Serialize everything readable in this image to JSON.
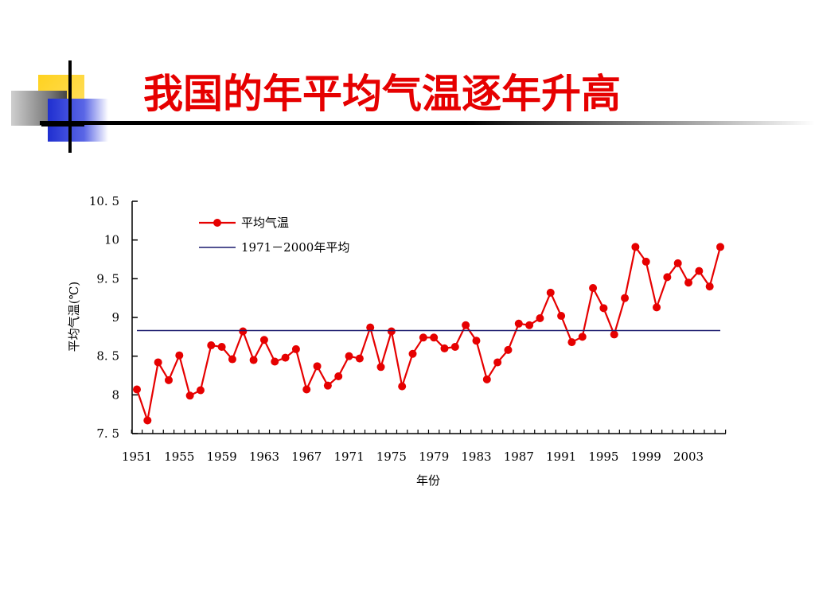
{
  "slide": {
    "title": "我国的年平均气温逐年升高",
    "title_color": "#e60000"
  },
  "chart_data": {
    "type": "line",
    "xlabel": "年份",
    "ylabel": "平均气温(℃)",
    "ylim": [
      7.5,
      10.5
    ],
    "yticks": [
      7.5,
      8,
      8.5,
      9,
      9.5,
      10,
      10.5
    ],
    "ytick_labels": [
      "7. 5",
      "8",
      "8. 5",
      "9",
      "9. 5",
      "10",
      "10. 5"
    ],
    "xlim": [
      1951,
      2006
    ],
    "xtick_labels": [
      "1951",
      "1955",
      "1959",
      "1963",
      "1967",
      "1971",
      "1975",
      "1979",
      "1983",
      "1987",
      "1991",
      "1995",
      "1999",
      "2003"
    ],
    "legend_position": "top-left",
    "grid": false,
    "series": [
      {
        "name": "平均气温",
        "color": "#e60000",
        "marker": "circle",
        "x": [
          1951,
          1952,
          1953,
          1954,
          1955,
          1956,
          1957,
          1958,
          1959,
          1960,
          1961,
          1962,
          1963,
          1964,
          1965,
          1966,
          1967,
          1968,
          1969,
          1970,
          1971,
          1972,
          1973,
          1974,
          1975,
          1976,
          1977,
          1978,
          1979,
          1980,
          1981,
          1982,
          1983,
          1984,
          1985,
          1986,
          1987,
          1988,
          1989,
          1990,
          1991,
          1992,
          1993,
          1994,
          1995,
          1996,
          1997,
          1998,
          1999,
          2000,
          2001,
          2002,
          2003,
          2004,
          2005,
          2006
        ],
        "values": [
          8.07,
          7.67,
          8.42,
          8.19,
          8.51,
          7.99,
          8.06,
          8.64,
          8.62,
          8.46,
          8.82,
          8.45,
          8.71,
          8.43,
          8.48,
          8.59,
          8.07,
          8.37,
          8.12,
          8.24,
          8.5,
          8.47,
          8.87,
          8.36,
          8.82,
          8.11,
          8.53,
          8.74,
          8.74,
          8.6,
          8.62,
          8.9,
          8.7,
          8.2,
          8.42,
          8.58,
          8.92,
          8.9,
          8.99,
          9.32,
          9.02,
          8.68,
          8.75,
          9.38,
          9.12,
          8.78,
          9.25,
          9.91,
          9.72,
          9.13,
          9.52,
          9.7,
          9.45,
          9.6,
          9.4,
          9.91
        ]
      },
      {
        "name": "1971－2000年平均",
        "color": "#1a1a6e",
        "marker": "none",
        "x": [
          1951,
          2006
        ],
        "values": [
          8.83,
          8.83
        ]
      }
    ]
  }
}
